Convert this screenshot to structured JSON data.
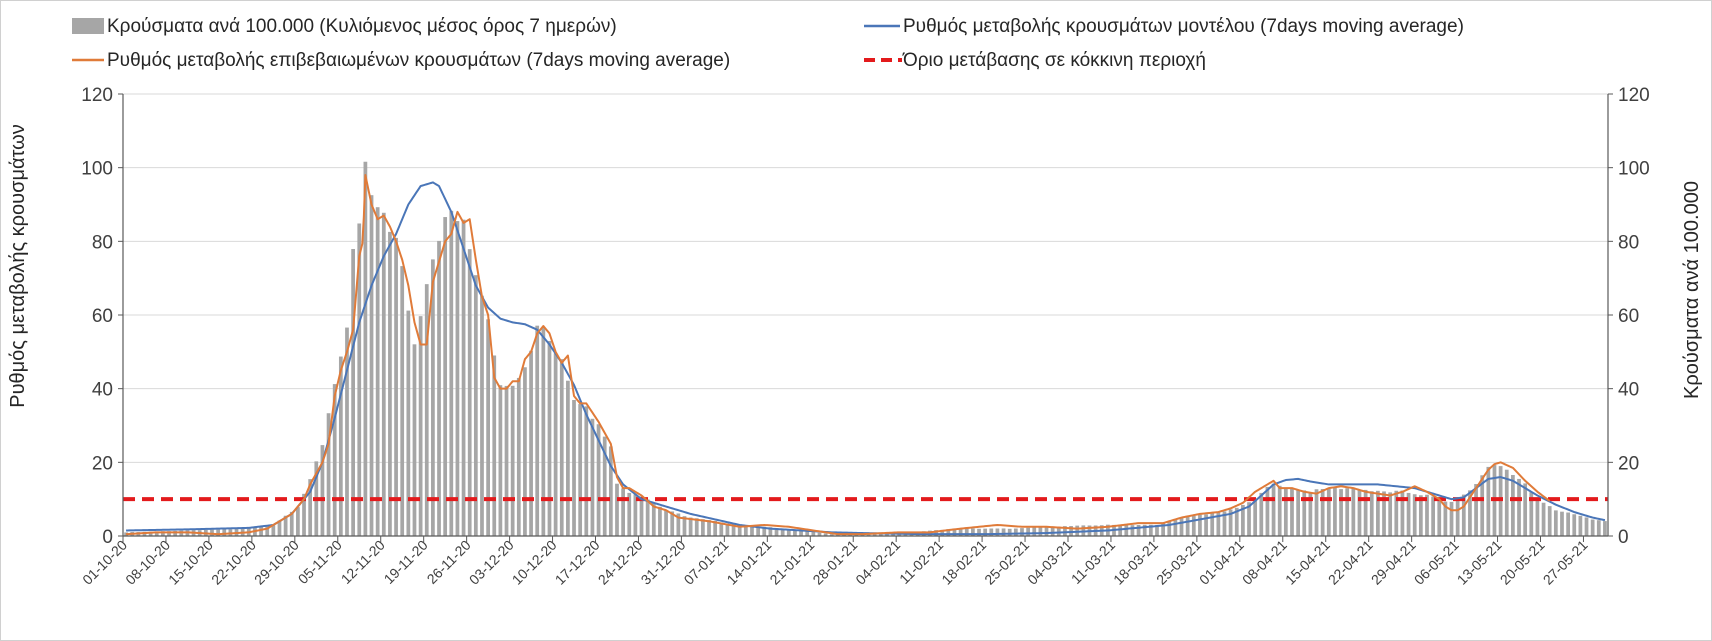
{
  "chart_data": {
    "type": "bar+line",
    "title": "",
    "ylabel_left": "Ρυθμός μεταβολής κρουσμάτων",
    "ylabel_right": "Κρούσματα ανά 100.000",
    "ylim_left": [
      0,
      120
    ],
    "ylim_right": [
      0,
      120
    ],
    "yticks": [
      0,
      20,
      40,
      60,
      80,
      100,
      120
    ],
    "grid": true,
    "legend_position": "top",
    "legend": {
      "bars": "Κρούσματα ανά 100.000 (Κυλιόμενος μέσος όρος 7 ημερών)",
      "model": "Ρυθμός μεταβολής κρουσμάτων μοντέλου (7days moving average)",
      "confirmed": "Ρυθμός μεταβολής επιβεβαιωμένων κρουσμάτων (7days moving average)",
      "threshold": "Όριο μετάβασης σε κόκκινη περιοχή"
    },
    "threshold_value": 10,
    "x_start": "01-10-20",
    "num_days": 242,
    "x_ticks": [
      "01-10-20",
      "08-10-20",
      "15-10-20",
      "22-10-20",
      "29-10-20",
      "05-11-20",
      "12-11-20",
      "19-11-20",
      "26-11-20",
      "03-12-20",
      "10-12-20",
      "17-12-20",
      "24-12-20",
      "31-12-20",
      "07-01-21",
      "14-01-21",
      "21-01-21",
      "28-01-21",
      "04-02-21",
      "11-02-21",
      "18-02-21",
      "25-02-21",
      "04-03-21",
      "11-03-21",
      "18-03-21",
      "25-03-21",
      "01-04-21",
      "08-04-21",
      "15-04-21",
      "22-04-21",
      "29-04-21",
      "06-05-21",
      "13-05-21",
      "20-05-21",
      "27-05-21"
    ],
    "series": [
      {
        "name": "Κρούσματα ανά 100.000 (Κυλιόμενος μέσος όρος 7 ημερών)",
        "kind": "bar",
        "color": "#a6a6a6",
        "keypoints": [
          [
            0,
            1.0
          ],
          [
            10,
            1.5
          ],
          [
            20,
            2.0
          ],
          [
            24,
            3.0
          ],
          [
            28,
            8.0
          ],
          [
            30,
            15.0
          ],
          [
            32,
            25.0
          ],
          [
            34,
            42.0
          ],
          [
            36,
            55.0
          ],
          [
            37,
            76.0
          ],
          [
            38,
            85.0
          ],
          [
            39,
            100.0
          ],
          [
            40,
            92.0
          ],
          [
            41,
            87.0
          ],
          [
            42,
            88.0
          ],
          [
            44,
            80.0
          ],
          [
            45,
            72.0
          ],
          [
            46,
            62.0
          ],
          [
            47,
            52.0
          ],
          [
            49,
            70.0
          ],
          [
            51,
            82.0
          ],
          [
            53,
            88.0
          ],
          [
            54,
            86.0
          ],
          [
            55,
            84.0
          ],
          [
            57,
            72.0
          ],
          [
            59,
            60.0
          ],
          [
            60,
            50.0
          ],
          [
            61,
            42.0
          ],
          [
            62,
            40.0
          ],
          [
            64,
            44.0
          ],
          [
            66,
            50.0
          ],
          [
            67,
            58.0
          ],
          [
            68,
            57.0
          ],
          [
            70,
            50.0
          ],
          [
            71,
            48.0
          ],
          [
            73,
            38.0
          ],
          [
            75,
            35.0
          ],
          [
            77,
            30.0
          ],
          [
            79,
            25.0
          ],
          [
            80,
            14.0
          ],
          [
            82,
            12.0
          ],
          [
            84,
            11.0
          ],
          [
            86,
            9.0
          ],
          [
            88,
            7.0
          ],
          [
            92,
            5.0
          ],
          [
            96,
            4.0
          ],
          [
            100,
            3.0
          ],
          [
            104,
            2.5
          ],
          [
            110,
            1.5
          ],
          [
            115,
            0.5
          ],
          [
            120,
            0.5
          ],
          [
            128,
            1.0
          ],
          [
            135,
            2.0
          ],
          [
            145,
            2.0
          ],
          [
            150,
            2.5
          ],
          [
            160,
            3.0
          ],
          [
            168,
            3.0
          ],
          [
            172,
            5.0
          ],
          [
            176,
            6.0
          ],
          [
            180,
            7.0
          ],
          [
            183,
            9.0
          ],
          [
            185,
            12.0
          ],
          [
            187,
            14.0
          ],
          [
            190,
            13.0
          ],
          [
            193,
            12.0
          ],
          [
            196,
            13.0
          ],
          [
            200,
            13.0
          ],
          [
            204,
            12.0
          ],
          [
            208,
            12.0
          ],
          [
            212,
            11.0
          ],
          [
            214,
            10.0
          ],
          [
            216,
            9.0
          ],
          [
            218,
            11.0
          ],
          [
            220,
            14.0
          ],
          [
            222,
            19.0
          ],
          [
            224,
            19.0
          ],
          [
            226,
            17.0
          ],
          [
            228,
            14.0
          ],
          [
            230,
            10.0
          ],
          [
            233,
            7.0
          ],
          [
            236,
            6.0
          ],
          [
            239,
            4.5
          ],
          [
            241,
            4.0
          ]
        ]
      },
      {
        "name": "Ρυθμός μεταβολής κρουσμάτων μοντέλου (7days moving average)",
        "kind": "line",
        "color": "#4a76b8",
        "keypoints": [
          [
            0,
            1.5
          ],
          [
            10,
            1.8
          ],
          [
            20,
            2.2
          ],
          [
            24,
            3.0
          ],
          [
            27,
            6.0
          ],
          [
            30,
            12.0
          ],
          [
            32,
            20.0
          ],
          [
            34,
            32.0
          ],
          [
            36,
            45.0
          ],
          [
            38,
            58.0
          ],
          [
            40,
            68.0
          ],
          [
            42,
            76.0
          ],
          [
            44,
            82.0
          ],
          [
            46,
            90.0
          ],
          [
            48,
            95.0
          ],
          [
            50,
            96.0
          ],
          [
            51,
            95.0
          ],
          [
            53,
            88.0
          ],
          [
            55,
            78.0
          ],
          [
            57,
            68.0
          ],
          [
            59,
            62.0
          ],
          [
            61,
            59.0
          ],
          [
            63,
            58.0
          ],
          [
            65,
            57.5
          ],
          [
            67,
            56.0
          ],
          [
            69,
            52.0
          ],
          [
            71,
            47.0
          ],
          [
            73,
            41.0
          ],
          [
            75,
            33.0
          ],
          [
            77,
            26.0
          ],
          [
            79,
            19.0
          ],
          [
            81,
            14.0
          ],
          [
            84,
            10.0
          ],
          [
            88,
            8.0
          ],
          [
            92,
            6.0
          ],
          [
            96,
            4.5
          ],
          [
            100,
            3.0
          ],
          [
            105,
            2.0
          ],
          [
            110,
            1.5
          ],
          [
            115,
            1.0
          ],
          [
            120,
            0.8
          ],
          [
            130,
            0.5
          ],
          [
            140,
            0.5
          ],
          [
            150,
            0.8
          ],
          [
            160,
            1.5
          ],
          [
            170,
            3.0
          ],
          [
            175,
            4.5
          ],
          [
            180,
            6.0
          ],
          [
            183,
            8.0
          ],
          [
            185,
            11.0
          ],
          [
            187,
            14.0
          ],
          [
            189,
            15.2
          ],
          [
            191,
            15.5
          ],
          [
            193,
            14.8
          ],
          [
            196,
            14.0
          ],
          [
            200,
            14.0
          ],
          [
            204,
            14.0
          ],
          [
            207,
            13.5
          ],
          [
            210,
            13.0
          ],
          [
            212,
            12.0
          ],
          [
            214,
            11.0
          ],
          [
            216,
            10.0
          ],
          [
            218,
            10.5
          ],
          [
            220,
            13.0
          ],
          [
            222,
            15.5
          ],
          [
            224,
            16.0
          ],
          [
            226,
            15.0
          ],
          [
            228,
            13.0
          ],
          [
            230,
            11.0
          ],
          [
            233,
            8.5
          ],
          [
            236,
            6.5
          ],
          [
            239,
            5.0
          ],
          [
            241,
            4.3
          ]
        ]
      },
      {
        "name": "Ρυθμός μεταβολής επιβεβαιωμένων κρουσμάτων (7days moving average)",
        "kind": "line",
        "color": "#e07b39",
        "keypoints": [
          [
            0,
            0.5
          ],
          [
            5,
            1.0
          ],
          [
            10,
            1.0
          ],
          [
            15,
            0.5
          ],
          [
            20,
            1.0
          ],
          [
            23,
            2.0
          ],
          [
            25,
            4.0
          ],
          [
            27,
            6.0
          ],
          [
            29,
            10.0
          ],
          [
            30,
            14.0
          ],
          [
            32,
            20.0
          ],
          [
            33,
            25.0
          ],
          [
            34,
            38.0
          ],
          [
            35,
            45.0
          ],
          [
            36,
            50.0
          ],
          [
            37,
            56.0
          ],
          [
            38,
            76.0
          ],
          [
            38.6,
            80.0
          ],
          [
            39,
            98.0
          ],
          [
            40,
            90.0
          ],
          [
            41,
            86.0
          ],
          [
            42,
            87.0
          ],
          [
            43,
            84.0
          ],
          [
            44,
            80.0
          ],
          [
            45,
            75.0
          ],
          [
            46,
            68.0
          ],
          [
            47,
            58.0
          ],
          [
            48,
            52.0
          ],
          [
            49,
            52.0
          ],
          [
            50,
            69.0
          ],
          [
            52,
            80.0
          ],
          [
            53,
            82.0
          ],
          [
            54,
            88.0
          ],
          [
            55,
            85.0
          ],
          [
            56,
            86.0
          ],
          [
            57,
            75.0
          ],
          [
            58,
            65.0
          ],
          [
            59,
            60.0
          ],
          [
            60,
            43.0
          ],
          [
            61,
            40.0
          ],
          [
            62,
            40.0
          ],
          [
            63,
            42.0
          ],
          [
            64,
            42.0
          ],
          [
            65,
            48.0
          ],
          [
            66,
            50.0
          ],
          [
            67,
            55.0
          ],
          [
            68,
            57.0
          ],
          [
            69,
            55.0
          ],
          [
            70,
            50.0
          ],
          [
            71,
            47.0
          ],
          [
            72,
            49.0
          ],
          [
            73,
            38.0
          ],
          [
            74,
            36.0
          ],
          [
            75,
            36.0
          ],
          [
            77,
            31.0
          ],
          [
            79,
            25.0
          ],
          [
            80,
            16.0
          ],
          [
            81,
            13.0
          ],
          [
            82,
            13.0
          ],
          [
            84,
            11.0
          ],
          [
            86,
            8.0
          ],
          [
            88,
            7.0
          ],
          [
            90,
            5.0
          ],
          [
            95,
            4.0
          ],
          [
            100,
            2.5
          ],
          [
            104,
            3.0
          ],
          [
            108,
            2.5
          ],
          [
            112,
            1.5
          ],
          [
            116,
            0.5
          ],
          [
            120,
            0.5
          ],
          [
            126,
            1.0
          ],
          [
            131,
            1.0
          ],
          [
            136,
            2.0
          ],
          [
            142,
            3.0
          ],
          [
            146,
            2.5
          ],
          [
            150,
            2.5
          ],
          [
            155,
            2.0
          ],
          [
            160,
            2.5
          ],
          [
            165,
            3.5
          ],
          [
            169,
            3.5
          ],
          [
            172,
            5.0
          ],
          [
            175,
            6.0
          ],
          [
            178,
            6.5
          ],
          [
            180,
            7.5
          ],
          [
            182,
            9.0
          ],
          [
            184,
            12.0
          ],
          [
            186,
            14.0
          ],
          [
            187,
            15.0
          ],
          [
            188,
            13.0
          ],
          [
            190,
            13.0
          ],
          [
            192,
            12.0
          ],
          [
            194,
            11.5
          ],
          [
            196,
            13.0
          ],
          [
            198,
            13.5
          ],
          [
            200,
            13.0
          ],
          [
            202,
            12.0
          ],
          [
            204,
            11.5
          ],
          [
            206,
            11.0
          ],
          [
            208,
            12.0
          ],
          [
            210,
            13.5
          ],
          [
            212,
            12.0
          ],
          [
            214,
            10.0
          ],
          [
            215,
            8.0
          ],
          [
            216,
            7.0
          ],
          [
            217,
            7.0
          ],
          [
            218,
            8.0
          ],
          [
            220,
            13.0
          ],
          [
            222,
            18.0
          ],
          [
            223,
            19.5
          ],
          [
            224,
            20.0
          ],
          [
            226,
            18.5
          ],
          [
            228,
            15.0
          ],
          [
            230,
            12.0
          ],
          [
            232,
            9.5
          ]
        ]
      },
      {
        "name": "Όριο μετάβασης σε κόκκινη περιοχή",
        "kind": "threshold",
        "color": "#e31a1c",
        "value": 10
      }
    ]
  }
}
